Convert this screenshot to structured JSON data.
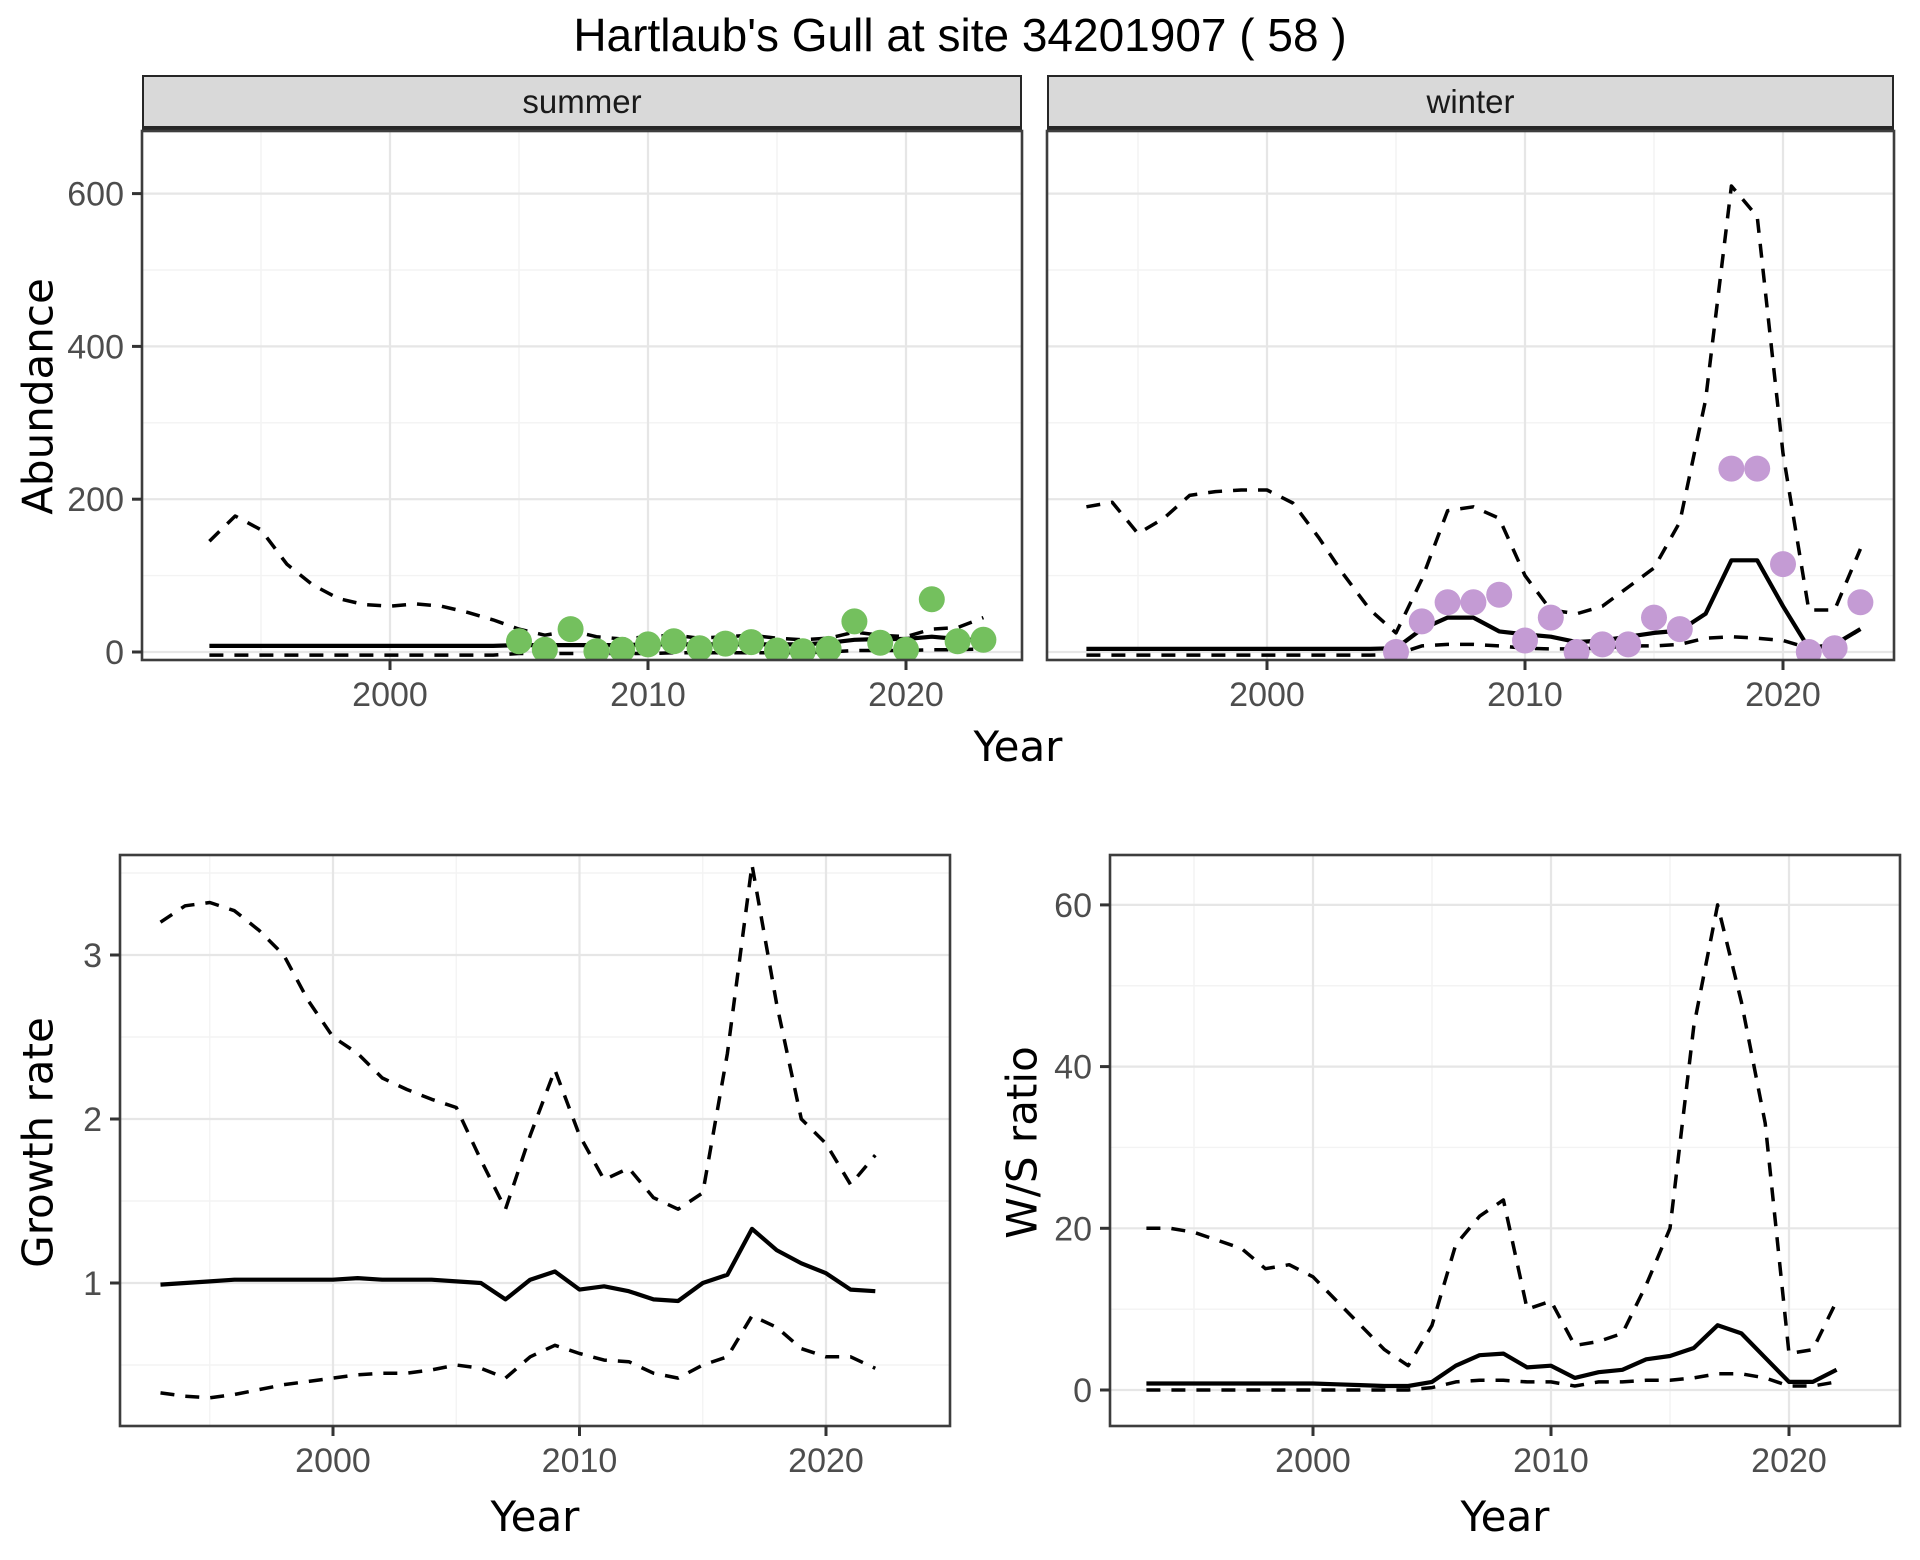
{
  "title": "Hartlaub's Gull at site 34201907 ( 58 )",
  "colors": {
    "summer_point": "#74c05e",
    "winter_point": "#c49bd4",
    "line": "#000000",
    "strip_bg": "#d9d9d9",
    "grid_major": "#e6e6e6",
    "grid_minor": "#f3f3f3",
    "panel_border": "#3d3d3d",
    "tick_text": "#4d4d4d"
  },
  "top_row": {
    "ylabel": "Abundance",
    "xlabel": "Year",
    "facets": {
      "summer": "summer",
      "winter": "winter"
    },
    "yticks": [
      0,
      200,
      400,
      600
    ],
    "xticks": [
      2000,
      2010,
      2020
    ]
  },
  "bottom_left": {
    "ylabel": "Growth rate",
    "xlabel": "Year",
    "yticks": [
      1,
      2,
      3
    ],
    "xticks": [
      2000,
      2010,
      2020
    ]
  },
  "bottom_right": {
    "ylabel": "W/S ratio",
    "xlabel": "Year",
    "yticks": [
      0,
      20,
      40,
      60
    ],
    "xticks": [
      2000,
      2010,
      2020
    ]
  },
  "chart_data": [
    {
      "id": "abundance_summer",
      "type": "line",
      "facet": "summer",
      "title": "Hartlaub's Gull at site 34201907 ( 58 )",
      "xlabel": "Year",
      "ylabel": "Abundance",
      "ylim": [
        -10,
        680
      ],
      "xlim": [
        1991.5,
        2024.5
      ],
      "x": [
        1993,
        1994,
        1995,
        1996,
        1997,
        1998,
        1999,
        2000,
        2001,
        2002,
        2003,
        2004,
        2005,
        2006,
        2007,
        2008,
        2009,
        2010,
        2011,
        2012,
        2013,
        2014,
        2015,
        2016,
        2017,
        2018,
        2019,
        2020,
        2021,
        2022,
        2023
      ],
      "center": [
        8,
        8,
        8,
        8,
        8,
        8,
        8,
        8,
        8,
        8,
        8,
        8,
        9,
        9,
        9,
        9,
        9,
        10,
        10,
        10,
        10,
        10,
        10,
        10,
        12,
        16,
        17,
        17,
        20,
        17,
        15
      ],
      "upper": [
        145,
        178,
        160,
        115,
        88,
        70,
        62,
        60,
        63,
        60,
        52,
        42,
        30,
        22,
        28,
        20,
        17,
        20,
        22,
        18,
        20,
        22,
        18,
        16,
        18,
        26,
        22,
        20,
        30,
        32,
        45
      ],
      "lower": [
        -4,
        -4,
        -4,
        -4,
        -4,
        -4,
        -4,
        -4,
        -4,
        -4,
        -4,
        -4,
        -2,
        -2,
        -2,
        -2,
        -2,
        -2,
        -1,
        -1,
        -1,
        -1,
        -1,
        -1,
        0,
        2,
        2,
        2,
        3,
        3,
        4
      ],
      "points": {
        "x": [
          2005,
          2006,
          2007,
          2008,
          2009,
          2010,
          2011,
          2012,
          2013,
          2014,
          2015,
          2016,
          2017,
          2018,
          2019,
          2020,
          2021,
          2022,
          2023
        ],
        "y": [
          14,
          3,
          30,
          1,
          3,
          10,
          14,
          5,
          11,
          13,
          2,
          1,
          4,
          40,
          12,
          3,
          69,
          14,
          16
        ]
      }
    },
    {
      "id": "abundance_winter",
      "type": "line",
      "facet": "winter",
      "xlabel": "Year",
      "ylabel": "Abundance",
      "ylim": [
        -10,
        680
      ],
      "xlim": [
        1991.5,
        2024.5
      ],
      "x": [
        1993,
        1994,
        1995,
        1996,
        1997,
        1998,
        1999,
        2000,
        2001,
        2002,
        2003,
        2004,
        2005,
        2006,
        2007,
        2008,
        2009,
        2010,
        2011,
        2012,
        2013,
        2014,
        2015,
        2016,
        2017,
        2018,
        2019,
        2020,
        2021,
        2022,
        2023
      ],
      "center": [
        4,
        4,
        4,
        4,
        4,
        4,
        4,
        4,
        4,
        4,
        4,
        4,
        5,
        30,
        45,
        45,
        27,
        23,
        20,
        13,
        15,
        20,
        25,
        28,
        50,
        120,
        120,
        60,
        5,
        10,
        30
      ],
      "upper": [
        190,
        196,
        155,
        175,
        205,
        210,
        212,
        212,
        195,
        150,
        100,
        55,
        25,
        95,
        185,
        190,
        175,
        100,
        55,
        50,
        60,
        85,
        110,
        170,
        330,
        610,
        570,
        260,
        55,
        55,
        135
      ],
      "lower": [
        -4,
        -4,
        -4,
        -4,
        -4,
        -4,
        -4,
        -4,
        -4,
        -4,
        -4,
        -4,
        -3,
        8,
        10,
        10,
        8,
        5,
        4,
        4,
        5,
        8,
        8,
        10,
        18,
        20,
        18,
        15,
        5,
        8,
        30
      ],
      "points": {
        "x": [
          2005,
          2006,
          2007,
          2008,
          2009,
          2010,
          2011,
          2012,
          2013,
          2014,
          2015,
          2016,
          2018,
          2019,
          2020,
          2021,
          2022,
          2023
        ],
        "y": [
          0,
          40,
          65,
          65,
          75,
          15,
          45,
          0,
          10,
          10,
          45,
          30,
          240,
          240,
          115,
          0,
          5,
          65
        ]
      }
    },
    {
      "id": "growth_rate",
      "type": "line",
      "xlabel": "Year",
      "ylabel": "Growth rate",
      "ylim": [
        0.13,
        3.6
      ],
      "xlim": [
        1991.4,
        2025.0
      ],
      "x": [
        1993,
        1994,
        1995,
        1996,
        1997,
        1998,
        1999,
        2000,
        2001,
        2002,
        2003,
        2004,
        2005,
        2006,
        2007,
        2008,
        2009,
        2010,
        2011,
        2012,
        2013,
        2014,
        2015,
        2016,
        2017,
        2018,
        2019,
        2020,
        2021,
        2022
      ],
      "center": [
        0.99,
        1.0,
        1.01,
        1.02,
        1.02,
        1.02,
        1.02,
        1.02,
        1.03,
        1.02,
        1.02,
        1.02,
        1.01,
        1.0,
        0.9,
        1.02,
        1.07,
        0.96,
        0.98,
        0.95,
        0.9,
        0.89,
        1.0,
        1.05,
        1.33,
        1.2,
        1.12,
        1.06,
        0.96,
        0.95
      ],
      "upper": [
        3.2,
        3.3,
        3.32,
        3.27,
        3.15,
        3.0,
        2.72,
        2.5,
        2.4,
        2.25,
        2.18,
        2.12,
        2.07,
        1.75,
        1.45,
        1.9,
        2.3,
        1.9,
        1.63,
        1.7,
        1.52,
        1.45,
        1.55,
        2.4,
        3.55,
        2.7,
        2.0,
        1.85,
        1.6,
        1.78
      ],
      "lower": [
        0.33,
        0.31,
        0.3,
        0.32,
        0.35,
        0.38,
        0.4,
        0.42,
        0.44,
        0.45,
        0.45,
        0.47,
        0.5,
        0.48,
        0.42,
        0.55,
        0.62,
        0.57,
        0.53,
        0.52,
        0.45,
        0.42,
        0.5,
        0.55,
        0.8,
        0.73,
        0.6,
        0.55,
        0.55,
        0.48
      ]
    },
    {
      "id": "ws_ratio",
      "type": "line",
      "xlabel": "Year",
      "ylabel": "W/S ratio",
      "ylim": [
        -4,
        66
      ],
      "xlim": [
        1991.5,
        2024.7
      ],
      "x": [
        1993,
        1994,
        1995,
        1996,
        1997,
        1998,
        1999,
        2000,
        2001,
        2002,
        2003,
        2004,
        2005,
        2006,
        2007,
        2008,
        2009,
        2010,
        2011,
        2012,
        2013,
        2014,
        2015,
        2016,
        2017,
        2018,
        2019,
        2020,
        2021,
        2022
      ],
      "center": [
        0.8,
        0.8,
        0.8,
        0.8,
        0.8,
        0.8,
        0.8,
        0.8,
        0.7,
        0.6,
        0.5,
        0.5,
        1.0,
        3.0,
        4.3,
        4.5,
        2.8,
        3.0,
        1.5,
        2.2,
        2.5,
        3.8,
        4.2,
        5.2,
        8.0,
        7.0,
        4.0,
        1.0,
        1.0,
        2.5
      ],
      "upper": [
        20,
        20,
        19.5,
        18.5,
        17.5,
        15,
        15.5,
        14,
        11,
        8,
        5,
        3,
        8,
        18,
        21.5,
        23.5,
        10,
        11,
        5.5,
        6,
        7,
        13,
        20,
        45,
        60,
        48,
        33,
        4.5,
        5,
        11
      ],
      "lower": [
        0,
        0,
        0,
        0,
        0,
        0,
        0,
        0,
        0,
        0,
        0,
        0,
        0.3,
        1,
        1.2,
        1.2,
        1,
        1,
        0.5,
        1,
        1,
        1.2,
        1.2,
        1.5,
        2,
        2,
        1.5,
        0.5,
        0.5,
        1
      ]
    }
  ]
}
